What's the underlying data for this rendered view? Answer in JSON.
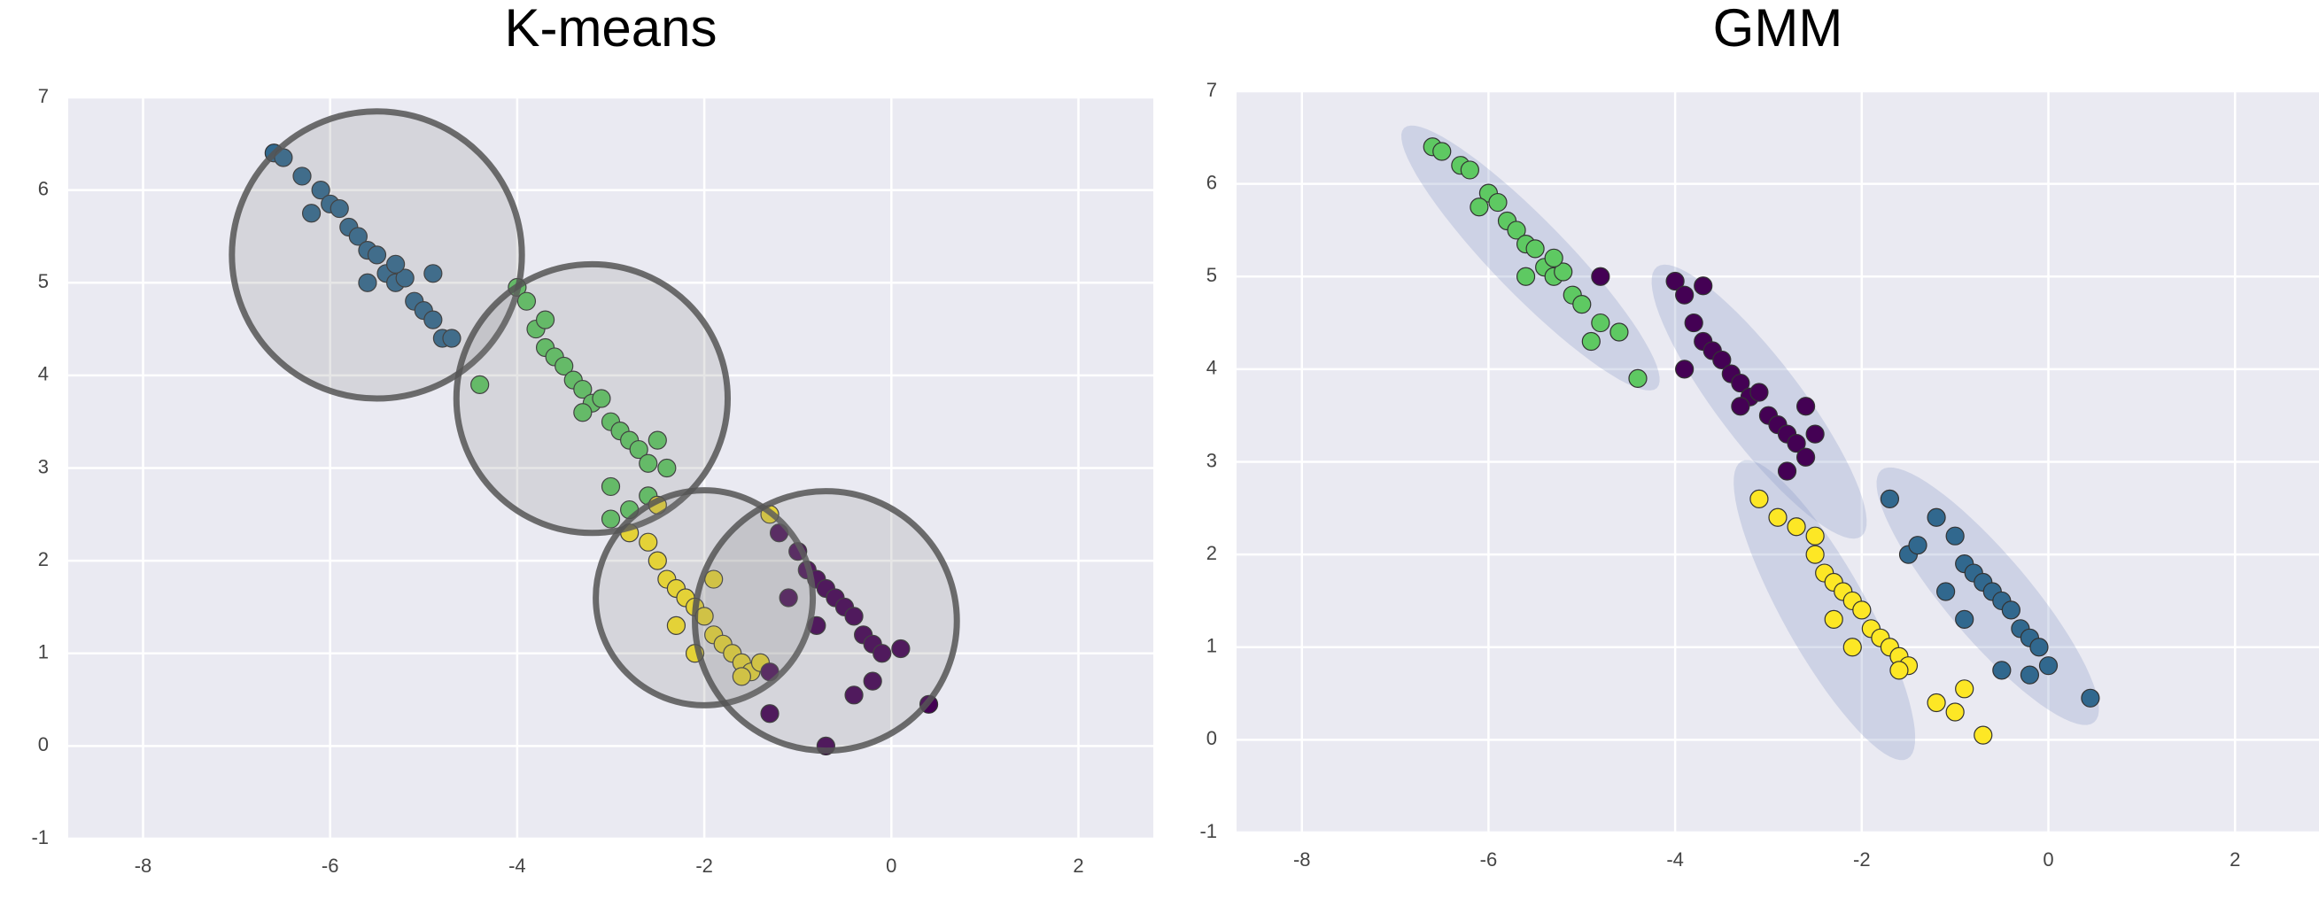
{
  "chart_data": [
    {
      "type": "scatter",
      "title": "K-means",
      "xlim": [
        -8.8,
        2.8
      ],
      "ylim": [
        -1,
        7
      ],
      "xticks": [
        -8,
        -6,
        -4,
        -2,
        0,
        2
      ],
      "yticks": [
        -1,
        0,
        1,
        2,
        3,
        4,
        5,
        6,
        7
      ],
      "grid": true,
      "overlay": "circle",
      "overlay_color": "#808080",
      "overlay_edge": "#555555",
      "circles": [
        {
          "x": -5.5,
          "y": 5.3,
          "r": 1.55
        },
        {
          "x": -3.2,
          "y": 3.75,
          "r": 1.45
        },
        {
          "x": -2.0,
          "y": 1.6,
          "r": 1.16
        },
        {
          "x": -0.7,
          "y": 1.35,
          "r": 1.4
        }
      ],
      "series": [
        {
          "color": "#31688e",
          "x": [
            -6.6,
            -6.5,
            -6.3,
            -6.1,
            -6.0,
            -5.9,
            -5.8,
            -5.7,
            -5.6,
            -5.5,
            -5.4,
            -5.3,
            -5.2,
            -5.1,
            -5.0,
            -4.9,
            -4.8,
            -4.7,
            -4.9,
            -5.3,
            -5.6,
            -6.2
          ],
          "y": [
            6.4,
            6.35,
            6.15,
            6.0,
            5.85,
            5.8,
            5.6,
            5.5,
            5.35,
            5.3,
            5.1,
            5.0,
            5.05,
            4.8,
            4.7,
            4.6,
            4.4,
            4.4,
            5.1,
            5.2,
            5.0,
            5.75
          ]
        },
        {
          "color": "#5ec962",
          "x": [
            -4.0,
            -3.9,
            -3.8,
            -3.7,
            -3.6,
            -3.5,
            -3.4,
            -3.3,
            -3.2,
            -3.1,
            -3.0,
            -2.9,
            -2.8,
            -2.7,
            -2.6,
            -2.5,
            -4.4,
            -3.0,
            -2.4,
            -3.3,
            -3.7,
            -3.0,
            -2.8,
            -2.6
          ],
          "y": [
            4.95,
            4.8,
            4.5,
            4.3,
            4.2,
            4.1,
            3.95,
            3.85,
            3.7,
            3.75,
            3.5,
            3.4,
            3.3,
            3.2,
            3.05,
            3.3,
            3.9,
            2.8,
            3.0,
            3.6,
            4.6,
            2.45,
            2.55,
            2.7
          ]
        },
        {
          "color": "#fde725",
          "x": [
            -2.8,
            -2.6,
            -2.5,
            -2.4,
            -2.3,
            -2.2,
            -2.1,
            -2.0,
            -1.9,
            -1.8,
            -1.7,
            -1.6,
            -1.5,
            -2.3,
            -2.1,
            -1.6,
            -1.3,
            -2.5,
            -1.9,
            -1.4
          ],
          "y": [
            2.3,
            2.2,
            2.0,
            1.8,
            1.7,
            1.6,
            1.5,
            1.4,
            1.2,
            1.1,
            1.0,
            0.9,
            0.8,
            1.3,
            1.0,
            0.75,
            2.5,
            2.6,
            1.8,
            0.9
          ]
        },
        {
          "color": "#440154",
          "x": [
            -1.2,
            -1.0,
            -0.9,
            -0.8,
            -0.7,
            -0.6,
            -0.5,
            -0.4,
            -0.3,
            -0.2,
            -0.1,
            0.1,
            -1.3,
            -1.3,
            -0.7,
            0.4,
            -0.4,
            -0.8,
            -1.1,
            -0.2
          ],
          "y": [
            2.3,
            2.1,
            1.9,
            1.8,
            1.7,
            1.6,
            1.5,
            1.4,
            1.2,
            1.1,
            1.0,
            1.05,
            0.8,
            0.35,
            0.0,
            0.45,
            0.55,
            1.3,
            1.6,
            0.7
          ]
        }
      ]
    },
    {
      "type": "scatter",
      "title": "GMM",
      "xlim": [
        -8.7,
        2.9
      ],
      "ylim": [
        -1,
        7
      ],
      "xticks": [
        -8,
        -6,
        -4,
        -2,
        0,
        2
      ],
      "yticks": [
        -1,
        0,
        1,
        2,
        3,
        4,
        5,
        6,
        7
      ],
      "grid": true,
      "overlay": "ellipse",
      "overlay_color": "#8a9cc8",
      "ellipses": [
        {
          "x": -5.55,
          "y": 5.2,
          "width": 3.9,
          "height": 0.8,
          "angle": -46
        },
        {
          "x": -3.1,
          "y": 3.65,
          "width": 3.64,
          "height": 0.9,
          "angle": -53
        },
        {
          "x": -2.4,
          "y": 1.4,
          "width": 3.67,
          "height": 0.9,
          "angle": -61
        },
        {
          "x": -0.65,
          "y": 1.55,
          "width": 3.55,
          "height": 0.9,
          "angle": -50
        }
      ],
      "series": [
        {
          "color": "#5ec962",
          "x": [
            -6.6,
            -6.5,
            -6.3,
            -6.2,
            -6.0,
            -5.9,
            -5.8,
            -5.7,
            -5.6,
            -5.5,
            -5.4,
            -5.3,
            -5.2,
            -5.1,
            -5.0,
            -4.9,
            -4.8,
            -4.6,
            -4.4,
            -5.3,
            -5.6,
            -6.1
          ],
          "y": [
            6.4,
            6.35,
            6.2,
            6.15,
            5.9,
            5.8,
            5.6,
            5.5,
            5.35,
            5.3,
            5.1,
            5.0,
            5.05,
            4.8,
            4.7,
            4.3,
            4.5,
            4.4,
            3.9,
            5.2,
            5.0,
            5.75
          ]
        },
        {
          "color": "#440154",
          "x": [
            -4.0,
            -3.9,
            -3.8,
            -3.7,
            -3.6,
            -3.5,
            -3.4,
            -3.3,
            -3.2,
            -3.1,
            -3.0,
            -2.9,
            -2.8,
            -2.7,
            -2.6,
            -2.5,
            -4.8,
            -3.7,
            -3.3,
            -3.9,
            -2.8,
            -2.6
          ],
          "y": [
            4.95,
            4.8,
            4.5,
            4.3,
            4.2,
            4.1,
            3.95,
            3.85,
            3.7,
            3.75,
            3.5,
            3.4,
            3.3,
            3.2,
            3.05,
            3.3,
            5.0,
            4.9,
            3.6,
            4.0,
            2.9,
            3.6
          ]
        },
        {
          "color": "#fde725",
          "x": [
            -3.1,
            -2.9,
            -2.7,
            -2.5,
            -2.4,
            -2.3,
            -2.2,
            -2.1,
            -2.0,
            -1.9,
            -1.8,
            -1.7,
            -1.6,
            -1.5,
            -2.3,
            -2.1,
            -1.6,
            -1.2,
            -1.0,
            -0.9,
            -0.7,
            -2.5
          ],
          "y": [
            2.6,
            2.4,
            2.3,
            2.0,
            1.8,
            1.7,
            1.6,
            1.5,
            1.4,
            1.2,
            1.1,
            1.0,
            0.9,
            0.8,
            1.3,
            1.0,
            0.75,
            0.4,
            0.3,
            0.55,
            0.05,
            2.2
          ]
        },
        {
          "color": "#31688e",
          "x": [
            -1.7,
            -1.5,
            -1.4,
            -1.2,
            -1.0,
            -0.9,
            -0.8,
            -0.7,
            -0.6,
            -0.5,
            -0.4,
            -0.3,
            -0.2,
            -0.1,
            0.0,
            -0.5,
            0.45,
            -0.9,
            -1.1,
            -0.2
          ],
          "y": [
            2.6,
            2.0,
            2.1,
            2.4,
            2.2,
            1.9,
            1.8,
            1.7,
            1.6,
            1.5,
            1.4,
            1.2,
            1.1,
            1.0,
            0.8,
            0.75,
            0.45,
            1.3,
            1.6,
            0.7
          ]
        }
      ]
    }
  ]
}
